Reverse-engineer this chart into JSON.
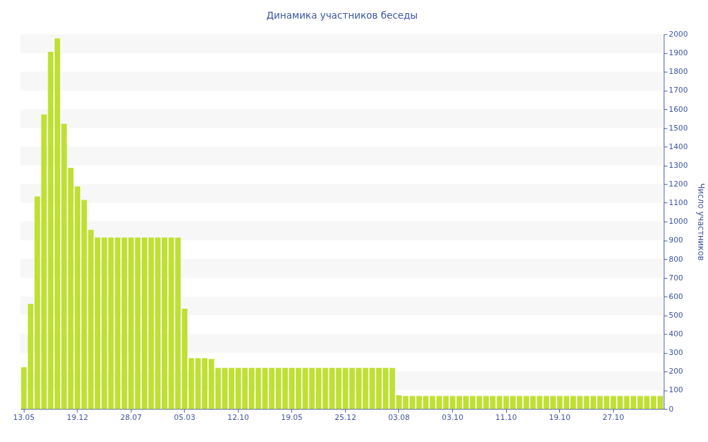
{
  "chart_data": {
    "type": "bar",
    "title": "Динамика участников беседы",
    "ylabel": "Число участников",
    "categories": [
      "13.05",
      null,
      null,
      null,
      null,
      null,
      null,
      null,
      "19.12",
      null,
      null,
      null,
      null,
      null,
      null,
      null,
      "28.07",
      null,
      null,
      null,
      null,
      null,
      null,
      null,
      "05.03",
      null,
      null,
      null,
      null,
      null,
      null,
      null,
      "12.10",
      null,
      null,
      null,
      null,
      null,
      null,
      null,
      "19.05",
      null,
      null,
      null,
      null,
      null,
      null,
      null,
      "25.12",
      null,
      null,
      null,
      null,
      null,
      null,
      null,
      "03.08",
      null,
      null,
      null,
      null,
      null,
      null,
      null,
      "03.10",
      null,
      null,
      null,
      null,
      null,
      null,
      null,
      "11.10",
      null,
      null,
      null,
      null,
      null,
      null,
      null,
      "19.10",
      null,
      null,
      null,
      null,
      null,
      null,
      null,
      "27.10",
      null,
      null,
      null,
      null,
      null,
      null,
      null
    ],
    "values": [
      223,
      561,
      1134,
      1572,
      1906,
      1978,
      1522,
      1287,
      1187,
      1116,
      956,
      915,
      915,
      915,
      915,
      915,
      915,
      915,
      915,
      915,
      915,
      915,
      915,
      915,
      535,
      271,
      271,
      271,
      267,
      219,
      219,
      219,
      219,
      219,
      219,
      219,
      219,
      219,
      219,
      219,
      219,
      219,
      219,
      219,
      219,
      219,
      219,
      219,
      219,
      219,
      219,
      219,
      219,
      219,
      219,
      219,
      73,
      69,
      69,
      69,
      69,
      69,
      69,
      69,
      69,
      69,
      69,
      69,
      69,
      69,
      69,
      69,
      69,
      69,
      69,
      69,
      69,
      69,
      69,
      69,
      69,
      69,
      69,
      69,
      69,
      69,
      69,
      69,
      69,
      69,
      69,
      69,
      69,
      69,
      69,
      69
    ],
    "color": "#bfe032",
    "ylim": [
      0,
      2000
    ],
    "yticks": [
      0,
      100,
      200,
      300,
      400,
      500,
      600,
      700,
      800,
      900,
      1000,
      1100,
      1200,
      1300,
      1400,
      1500,
      1600,
      1700,
      1800,
      1900,
      2000
    ],
    "bands": [
      {
        "axis": "y",
        "from": 100,
        "to": 200,
        "color": "#f7f7f7"
      },
      {
        "axis": "y",
        "from": 300,
        "to": 400,
        "color": "#f7f7f7"
      },
      {
        "axis": "y",
        "from": 500,
        "to": 600,
        "color": "#f7f7f7"
      },
      {
        "axis": "y",
        "from": 700,
        "to": 800,
        "color": "#f7f7f7"
      },
      {
        "axis": "y",
        "from": 900,
        "to": 1000,
        "color": "#f7f7f7"
      },
      {
        "axis": "y",
        "from": 1100,
        "to": 1200,
        "color": "#f7f7f7"
      },
      {
        "axis": "y",
        "from": 1300,
        "to": 1400,
        "color": "#f7f7f7"
      },
      {
        "axis": "y",
        "from": 1500,
        "to": 1600,
        "color": "#f7f7f7"
      },
      {
        "axis": "y",
        "from": 1700,
        "to": 1800,
        "color": "#f7f7f7"
      },
      {
        "axis": "y",
        "from": 1900,
        "to": 2000,
        "color": "#f7f7f7"
      }
    ]
  }
}
